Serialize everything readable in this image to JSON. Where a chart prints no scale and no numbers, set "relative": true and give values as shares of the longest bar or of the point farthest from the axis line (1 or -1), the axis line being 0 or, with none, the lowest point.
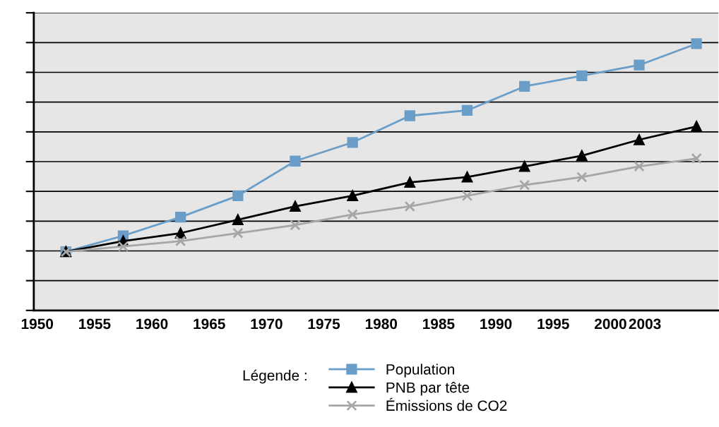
{
  "chart_data": {
    "type": "line",
    "relative": true,
    "x": [
      1952.5,
      1957.5,
      1962.5,
      1967.5,
      1972.5,
      1977.5,
      1982.5,
      1987.5,
      1992.5,
      1997.5,
      2002.5,
      2007.5
    ],
    "xlim": [
      1949.7,
      2009.4
    ],
    "xticks": [
      1950,
      1955,
      1960,
      1965,
      1970,
      1975,
      1980,
      1985,
      1990,
      1995,
      2000,
      2003
    ],
    "series": [
      {
        "name": "Population",
        "color": "#6a9ec8",
        "marker": "square",
        "values": [
          0.22,
          0.28,
          0.35,
          0.43,
          0.56,
          0.63,
          0.73,
          0.75,
          0.84,
          0.88,
          0.92,
          1.0
        ]
      },
      {
        "name": "PNB par tête",
        "color": "#000000",
        "marker": "triangle",
        "values": [
          0.22,
          0.26,
          0.29,
          0.34,
          0.39,
          0.43,
          0.48,
          0.5,
          0.54,
          0.58,
          0.64,
          0.69
        ]
      },
      {
        "name": "Émissions de CO2",
        "color": "#a6a6a6",
        "marker": "cross",
        "values": [
          0.22,
          0.24,
          0.26,
          0.29,
          0.32,
          0.36,
          0.39,
          0.43,
          0.47,
          0.5,
          0.54,
          0.57
        ]
      }
    ],
    "legend": "bottom",
    "legend_title": "Légende :",
    "grid": "y"
  }
}
